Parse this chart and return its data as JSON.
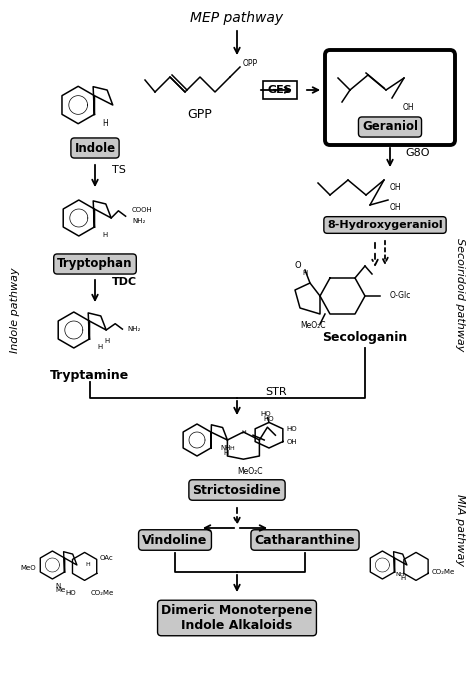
{
  "figsize": [
    4.74,
    6.75
  ],
  "dpi": 100,
  "bg_color": "#ffffff",
  "gray_box_color": "#c8c8c8",
  "labels": {
    "mep": "MEP pathway",
    "gpp": "GPP",
    "ges": "GES",
    "geraniol": "Geraniol",
    "g8o": "G8O",
    "hydroxy": "8-Hydroxygeraniol",
    "secologanin": "Secologanin",
    "indole": "Indole",
    "ts": "TS",
    "tryptophan": "Tryptophan",
    "tdc": "TDC",
    "tryptamine": "Tryptamine",
    "str": "STR",
    "strictosidine": "Strictosidine",
    "vindoline": "Vindoline",
    "catharanthine": "Catharanthine",
    "dma": "Dimeric Monoterpene\nIndole Alkaloids",
    "indole_path": "Indole pathway",
    "seco_path": "Secoiridoid pathway",
    "mia_path": "MIA pathway"
  }
}
